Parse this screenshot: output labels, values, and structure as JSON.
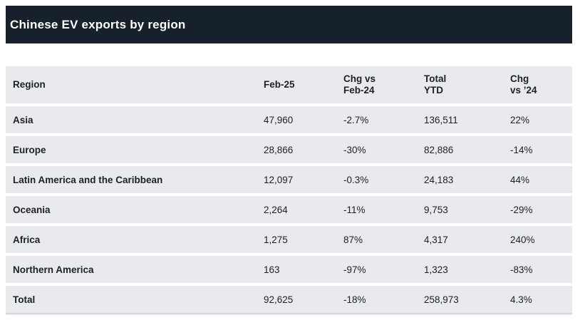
{
  "header": {
    "title": "Chinese EV exports by region",
    "bar_color": "#16212b"
  },
  "table": {
    "row_bg_color": "#e8eaee",
    "text_color": "#1b2127",
    "headers": {
      "region": "Region",
      "feb25": "Feb-25",
      "chg_vs_feb24": [
        "Chg vs",
        "Feb-24"
      ],
      "total_ytd": [
        "Total",
        "YTD"
      ],
      "chg_vs_24": [
        "Chg",
        "vs ’24"
      ]
    },
    "rows": [
      {
        "region": "Asia",
        "feb25": "47,960",
        "chg_vs_feb24": "-2.7%",
        "total_ytd": "136,511",
        "chg_vs_24": "22%"
      },
      {
        "region": "Europe",
        "feb25": "28,866",
        "chg_vs_feb24": "-30%",
        "total_ytd": "82,886",
        "chg_vs_24": "-14%"
      },
      {
        "region": "Latin America and the Caribbean",
        "feb25": "12,097",
        "chg_vs_feb24": "-0.3%",
        "total_ytd": "24,183",
        "chg_vs_24": "44%"
      },
      {
        "region": "Oceania",
        "feb25": "2,264",
        "chg_vs_feb24": "-11%",
        "total_ytd": "9,753",
        "chg_vs_24": "-29%"
      },
      {
        "region": "Africa",
        "feb25": "1,275",
        "chg_vs_feb24": "87%",
        "total_ytd": "4,317",
        "chg_vs_24": "240%"
      },
      {
        "region": "Northern America",
        "feb25": "163",
        "chg_vs_feb24": "-97%",
        "total_ytd": "1,323",
        "chg_vs_24": "-83%"
      },
      {
        "region": "Total",
        "feb25": "92,625",
        "chg_vs_feb24": "-18%",
        "total_ytd": "258,973",
        "chg_vs_24": "4.3%"
      }
    ]
  },
  "chart_data": {
    "type": "table",
    "title": "Chinese EV exports by region",
    "columns": [
      "Region",
      "Feb-25",
      "Chg vs Feb-24",
      "Total YTD",
      "Chg vs ’24"
    ],
    "rows": [
      [
        "Asia",
        47960,
        "-2.7%",
        136511,
        "22%"
      ],
      [
        "Europe",
        28866,
        "-30%",
        82886,
        "-14%"
      ],
      [
        "Latin America and the Caribbean",
        12097,
        "-0.3%",
        24183,
        "44%"
      ],
      [
        "Oceania",
        2264,
        "-11%",
        9753,
        "-29%"
      ],
      [
        "Africa",
        1275,
        "87%",
        4317,
        "240%"
      ],
      [
        "Northern America",
        163,
        "-97%",
        1323,
        "-83%"
      ],
      [
        "Total",
        92625,
        "-18%",
        258973,
        "4.3%"
      ]
    ]
  }
}
